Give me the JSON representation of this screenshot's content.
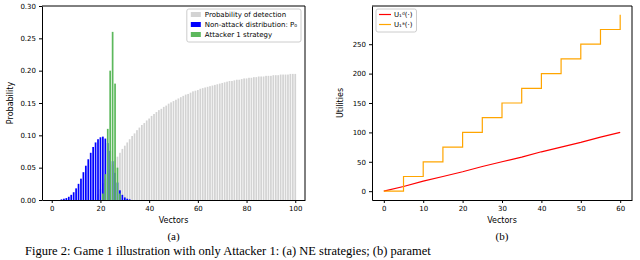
{
  "chart_data": [
    {
      "type": "bar",
      "title": "(a)",
      "x_label": "Vectors",
      "y_label": "Probability",
      "xlim": [
        -4,
        104
      ],
      "ylim": [
        0,
        0.3
      ],
      "xticks": [
        0,
        20,
        40,
        60,
        80,
        100
      ],
      "yticks": [
        {
          "value": 0,
          "label": "0.00"
        },
        {
          "value": 0.05,
          "label": "0.05"
        },
        {
          "value": 0.1,
          "label": "0.10"
        },
        {
          "value": 0.15,
          "label": "0.15"
        },
        {
          "value": 0.2,
          "label": "0.20"
        },
        {
          "value": 0.25,
          "label": "0.25"
        },
        {
          "value": 0.3,
          "label": "0.30"
        }
      ],
      "legend": "upper right",
      "x": [
        0,
        1,
        2,
        3,
        4,
        5,
        6,
        7,
        8,
        9,
        10,
        11,
        12,
        13,
        14,
        15,
        16,
        17,
        18,
        19,
        20,
        21,
        22,
        23,
        24,
        25,
        26,
        27,
        28,
        29,
        30,
        31,
        32,
        33,
        34,
        35,
        36,
        37,
        38,
        39,
        40,
        41,
        42,
        43,
        44,
        45,
        46,
        47,
        48,
        49,
        50,
        51,
        52,
        53,
        54,
        55,
        56,
        57,
        58,
        59,
        60,
        61,
        62,
        63,
        64,
        65,
        66,
        67,
        68,
        69,
        70,
        71,
        72,
        73,
        74,
        75,
        76,
        77,
        78,
        79,
        80,
        81,
        82,
        83,
        84,
        85,
        86,
        87,
        88,
        89,
        90,
        91,
        92,
        93,
        94,
        95,
        96,
        97,
        98,
        99,
        100
      ],
      "series": [
        {
          "name": "Probability of detection",
          "color": "#d3d3d3",
          "values": [
            null,
            null,
            null,
            null,
            null,
            null,
            null,
            null,
            null,
            null,
            null,
            null,
            null,
            null,
            null,
            null,
            null,
            null,
            null,
            0.009,
            0.017,
            0.026,
            0.033,
            0.041,
            0.048,
            0.055,
            0.061,
            0.067,
            0.073,
            0.079,
            0.084,
            0.089,
            0.094,
            0.099,
            0.103,
            0.108,
            0.112,
            0.116,
            0.119,
            0.123,
            0.126,
            0.13,
            0.133,
            0.136,
            0.139,
            0.141,
            0.144,
            0.146,
            0.149,
            0.151,
            0.153,
            0.155,
            0.157,
            0.159,
            0.161,
            0.163,
            0.164,
            0.166,
            0.168,
            0.169,
            0.17,
            0.172,
            0.173,
            0.174,
            0.175,
            0.176,
            0.177,
            0.178,
            0.179,
            0.18,
            0.181,
            0.182,
            0.183,
            0.184,
            0.184,
            0.185,
            0.186,
            0.186,
            0.187,
            0.188,
            0.188,
            0.189,
            0.189,
            0.19,
            0.19,
            0.191,
            0.191,
            0.191,
            0.192,
            0.192,
            0.192,
            0.193,
            0.193,
            0.193,
            0.194,
            0.194,
            0.194,
            0.194,
            0.195,
            0.195,
            0.195
          ]
        },
        {
          "name": "Non-attack distribution: P₀",
          "color": "#0000ff",
          "values": [
            null,
            null,
            null,
            null,
            0.001,
            0.002,
            0.003,
            0.005,
            0.008,
            0.012,
            0.018,
            0.025,
            0.033,
            0.043,
            0.053,
            0.063,
            0.073,
            0.082,
            0.089,
            0.094,
            0.097,
            0.098,
            0.095,
            0.088,
            0.076,
            0.06,
            0.042,
            0.027,
            0.015,
            0.008,
            0.004,
            0.002,
            0.001,
            null,
            null,
            null,
            null,
            null,
            null,
            null,
            null,
            null,
            null,
            null,
            null,
            null,
            null,
            null,
            null,
            null,
            null,
            null,
            null,
            null,
            null,
            null,
            null,
            null,
            null,
            null,
            null,
            null,
            null,
            null,
            null,
            null,
            null,
            null,
            null,
            null,
            null,
            null,
            null,
            null,
            null,
            null,
            null,
            null,
            null,
            null,
            null,
            null,
            null,
            null,
            null,
            null,
            null,
            null,
            null,
            null,
            null,
            null,
            null,
            null,
            null,
            null,
            null,
            null,
            null,
            null,
            null
          ]
        },
        {
          "name": "Attacker 1 strategy",
          "color": "#5cb85c",
          "values": [
            null,
            null,
            null,
            null,
            null,
            null,
            null,
            null,
            null,
            null,
            null,
            null,
            null,
            null,
            null,
            null,
            null,
            null,
            null,
            null,
            null,
            0.01,
            0.04,
            0.11,
            0.2,
            0.26,
            0.18,
            0.05,
            0.01,
            null,
            null,
            null,
            null,
            null,
            null,
            null,
            null,
            null,
            null,
            null,
            null,
            null,
            null,
            null,
            null,
            null,
            null,
            null,
            null,
            null,
            null,
            null,
            null,
            null,
            null,
            null,
            null,
            null,
            null,
            null,
            null,
            null,
            null,
            null,
            null,
            null,
            null,
            null,
            null,
            null,
            null,
            null,
            null,
            null,
            null,
            null,
            null,
            null,
            null,
            null,
            null,
            null,
            null,
            null,
            null,
            null,
            null,
            null,
            null,
            null,
            null,
            null,
            null,
            null,
            null,
            null,
            null,
            null,
            null,
            null,
            null
          ]
        }
      ]
    },
    {
      "type": "line",
      "title": "(b)",
      "x_label": "Vectors",
      "y_label": "Utilities",
      "xlim": [
        -3,
        63
      ],
      "ylim": [
        -15,
        315
      ],
      "xticks": [
        0,
        10,
        20,
        30,
        40,
        50,
        60
      ],
      "yticks": [
        0,
        50,
        100,
        150,
        200,
        250
      ],
      "legend": "upper left",
      "x": [
        0,
        5,
        10,
        15,
        20,
        25,
        30,
        35,
        40,
        45,
        50,
        55,
        60
      ],
      "series": [
        {
          "name": "U₁ᵈ(·)",
          "color": "#ff0000",
          "line_style": "solid",
          "values": [
            0,
            8,
            17,
            25,
            33,
            42,
            50,
            58,
            67,
            75,
            83,
            92,
            100
          ]
        },
        {
          "name": "U₁ᵃ(·)",
          "color": "#ffa500",
          "line_style": "steps",
          "values": [
            0,
            25,
            50,
            75,
            100,
            125,
            150,
            175,
            200,
            225,
            250,
            275,
            300
          ]
        }
      ]
    }
  ],
  "caption": "Figure 2: Game 1 illustration with only Attacker 1: (a) NE strategies; (b) paramet"
}
